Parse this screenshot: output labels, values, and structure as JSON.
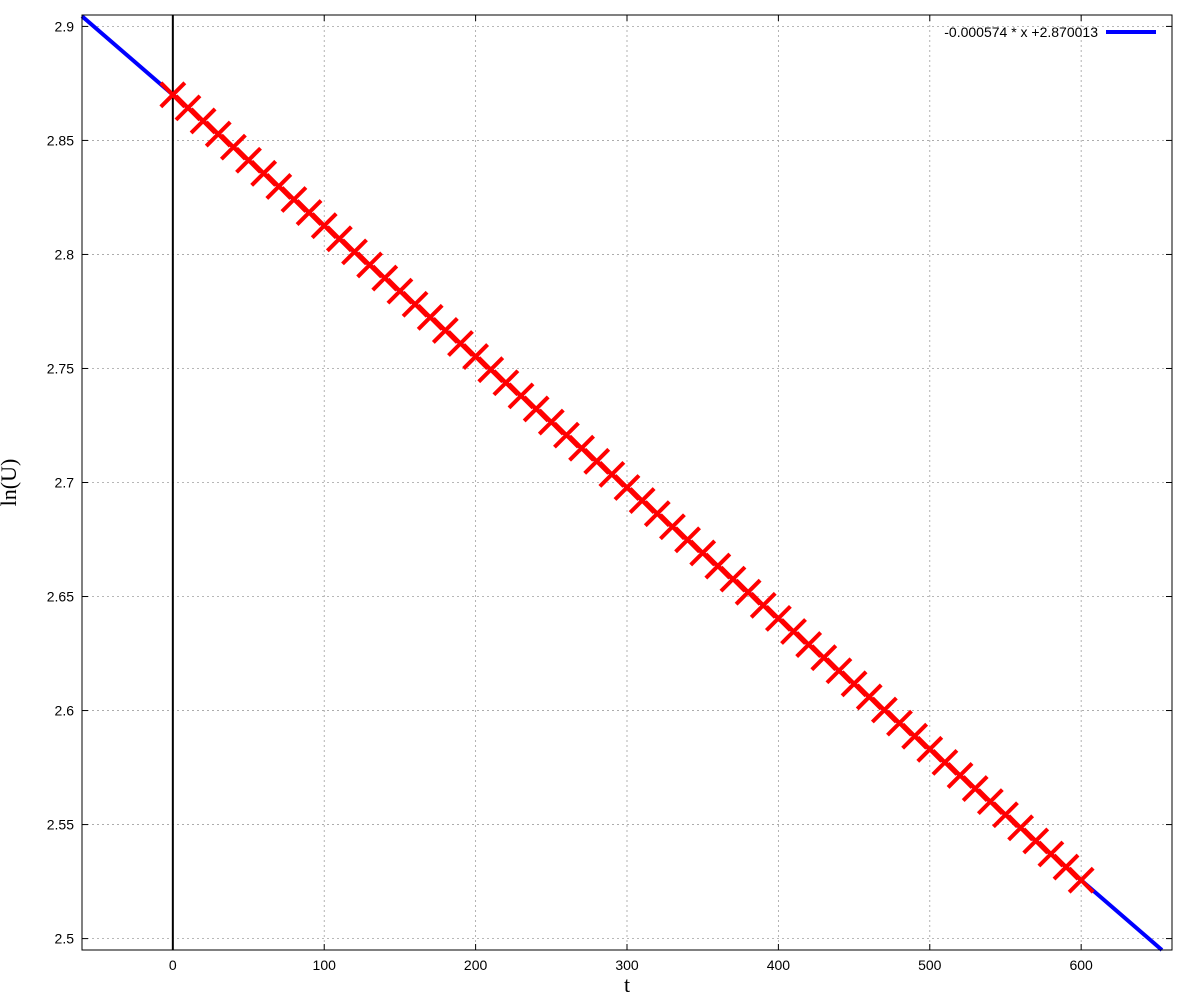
{
  "chart_data": {
    "type": "scatter",
    "xlabel": "t",
    "ylabel": "ln(U)",
    "xlim": [
      -60,
      660
    ],
    "ylim": [
      2.495,
      2.905
    ],
    "xticks": [
      0,
      100,
      200,
      300,
      400,
      500,
      600
    ],
    "yticks": [
      2.5,
      2.55,
      2.6,
      2.65,
      2.7,
      2.75,
      2.8,
      2.85,
      2.9
    ],
    "xtick_labels": [
      "0",
      "100",
      "200",
      "300",
      "400",
      "500",
      "600"
    ],
    "ytick_labels": [
      "2.5",
      "2.55",
      "2.6",
      "2.65",
      "2.7",
      "2.75",
      "2.8",
      "2.85",
      "2.9"
    ],
    "grid": true,
    "vertical_line_x": 0,
    "legend_position": "top-right",
    "fit_line": {
      "label": "-0.000574 * x +2.870013",
      "slope": -0.000574,
      "intercept": 2.870013,
      "color": "#0000ff"
    },
    "points": {
      "color": "#ff0000",
      "marker": "x",
      "x_start": 0,
      "x_end": 600,
      "x_step": 10
    }
  }
}
